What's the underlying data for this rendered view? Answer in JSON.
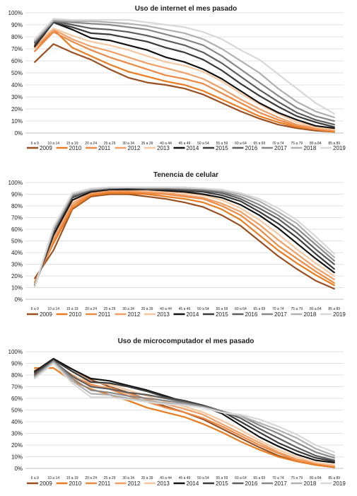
{
  "colors": {
    "2009": "#9a4f22",
    "2010": "#e97c1f",
    "2011": "#ec8a45",
    "2012": "#f0a066",
    "2013": "#f6c8a2",
    "2014": "#111111",
    "2015": "#3a3a3a",
    "2016": "#5e5e5e",
    "2017": "#888888",
    "2018": "#b0b0b0",
    "2019": "#d8d8d8",
    "grid": "#d9d9d9",
    "text": "#222222"
  },
  "chart_data": [
    {
      "type": "line",
      "title": "Uso de internet el mes pasado",
      "categories": [
        "6 a 9",
        "10 a 14",
        "15 a 19",
        "20 a 24",
        "25 a 29",
        "30 a 34",
        "35 a 39",
        "40 a 44",
        "45 a 49",
        "50 a 54",
        "55 a 59",
        "60 a 64",
        "65 a 69",
        "70 a 74",
        "75 a 79",
        "80 a 84",
        "85 a 89"
      ],
      "ylim": [
        0,
        100
      ],
      "yticks": [
        "0%",
        "10%",
        "20%",
        "30%",
        "40%",
        "50%",
        "60%",
        "70%",
        "80%",
        "90%",
        "100%"
      ],
      "grid": true,
      "legend": "bottom",
      "series": [
        {
          "name": "2009",
          "values": [
            59,
            74,
            67,
            61,
            53,
            46,
            42,
            40,
            37,
            32,
            25,
            18,
            12,
            7,
            4,
            2,
            1
          ]
        },
        {
          "name": "2010",
          "values": [
            68,
            86,
            71,
            64,
            57,
            51,
            47,
            43,
            40,
            35,
            28,
            21,
            14,
            9,
            5,
            3,
            1
          ]
        },
        {
          "name": "2011",
          "values": [
            68,
            84,
            76,
            69,
            63,
            58,
            53,
            48,
            45,
            41,
            33,
            25,
            17,
            11,
            6,
            3,
            2
          ]
        },
        {
          "name": "2012",
          "values": [
            71,
            86,
            78,
            72,
            68,
            63,
            58,
            54,
            50,
            45,
            37,
            28,
            20,
            13,
            7,
            4,
            2
          ]
        },
        {
          "name": "2013",
          "values": [
            74,
            87,
            81,
            76,
            73,
            69,
            64,
            59,
            56,
            51,
            43,
            33,
            24,
            16,
            9,
            5,
            3
          ]
        },
        {
          "name": "2014",
          "values": [
            72,
            92,
            86,
            79,
            77,
            73,
            69,
            63,
            59,
            53,
            45,
            35,
            25,
            17,
            11,
            6,
            4
          ]
        },
        {
          "name": "2015",
          "values": [
            73,
            92,
            88,
            83,
            82,
            79,
            76,
            71,
            67,
            61,
            52,
            41,
            31,
            22,
            14,
            9,
            5
          ]
        },
        {
          "name": "2016",
          "values": [
            75,
            93,
            90,
            87,
            86,
            84,
            81,
            77,
            73,
            67,
            58,
            47,
            36,
            26,
            17,
            11,
            7
          ]
        },
        {
          "name": "2017",
          "values": [
            76,
            93,
            92,
            91,
            90,
            88,
            86,
            82,
            78,
            73,
            64,
            53,
            42,
            31,
            21,
            14,
            10
          ]
        },
        {
          "name": "2018",
          "values": [
            77,
            94,
            93,
            93,
            92,
            91,
            89,
            86,
            83,
            78,
            70,
            60,
            50,
            37,
            26,
            18,
            13
          ]
        },
        {
          "name": "2019",
          "values": [
            78,
            95,
            94,
            94,
            94,
            94,
            92,
            90,
            88,
            84,
            78,
            69,
            61,
            49,
            37,
            25,
            16
          ]
        }
      ]
    },
    {
      "type": "line",
      "title": "Tenencia de celular",
      "categories": [
        "6 a 9",
        "10 a 14",
        "15 a 19",
        "20 a 24",
        "25 a 29",
        "30 a 34",
        "35 a 39",
        "40 a 44",
        "45 a 49",
        "50 a 54",
        "55 a 59",
        "60 a 64",
        "65 a 69",
        "70 a 74",
        "75 a 79",
        "80 a 84",
        "85 a 89"
      ],
      "ylim": [
        0,
        100
      ],
      "yticks": [
        "0%",
        "10%",
        "20%",
        "30%",
        "40%",
        "50%",
        "60%",
        "70%",
        "80%",
        "90%",
        "100%"
      ],
      "grid": true,
      "legend": "bottom",
      "series": [
        {
          "name": "2009",
          "values": [
            18,
            42,
            77,
            88,
            90,
            90,
            88,
            86,
            83,
            79,
            72,
            63,
            50,
            37,
            26,
            16,
            9
          ]
        },
        {
          "name": "2010",
          "values": [
            15,
            48,
            78,
            89,
            91,
            91,
            90,
            88,
            86,
            83,
            77,
            68,
            55,
            42,
            31,
            21,
            12
          ]
        },
        {
          "name": "2011",
          "values": [
            14,
            50,
            80,
            90,
            92,
            92,
            91,
            90,
            88,
            86,
            80,
            72,
            60,
            46,
            35,
            24,
            14
          ]
        },
        {
          "name": "2012",
          "values": [
            13,
            52,
            82,
            91,
            93,
            93,
            92,
            91,
            89,
            87,
            82,
            75,
            64,
            51,
            39,
            27,
            17
          ]
        },
        {
          "name": "2013",
          "values": [
            13,
            54,
            84,
            92,
            94,
            94,
            93,
            92,
            91,
            89,
            85,
            78,
            68,
            56,
            43,
            31,
            20
          ]
        },
        {
          "name": "2014",
          "values": [
            12,
            55,
            85,
            92,
            94,
            94,
            94,
            93,
            92,
            90,
            87,
            81,
            72,
            61,
            48,
            35,
            23
          ]
        },
        {
          "name": "2015",
          "values": [
            12,
            57,
            87,
            93,
            95,
            95,
            94,
            94,
            93,
            92,
            89,
            84,
            75,
            65,
            53,
            39,
            26
          ]
        },
        {
          "name": "2016",
          "values": [
            12,
            58,
            88,
            93,
            95,
            95,
            95,
            95,
            94,
            93,
            91,
            86,
            78,
            69,
            57,
            43,
            30
          ]
        },
        {
          "name": "2017",
          "values": [
            11,
            59,
            89,
            94,
            95,
            96,
            95,
            95,
            95,
            94,
            92,
            88,
            81,
            72,
            61,
            47,
            33
          ]
        },
        {
          "name": "2018",
          "values": [
            11,
            61,
            90,
            94,
            96,
            96,
            96,
            96,
            95,
            95,
            93,
            90,
            84,
            75,
            65,
            50,
            36
          ]
        },
        {
          "name": "2019",
          "values": [
            11,
            62,
            91,
            95,
            96,
            96,
            96,
            96,
            96,
            95,
            94,
            91,
            86,
            78,
            68,
            54,
            39
          ]
        }
      ]
    },
    {
      "type": "line",
      "title": "Uso de microcomputador el mes pasado",
      "categories": [
        "6 a 9",
        "10 a 14",
        "15 a 19",
        "20 a 24",
        "25 a 29",
        "30 a 34",
        "35 a 39",
        "40 a 44",
        "45 a 49",
        "50 a 54",
        "55 a 59",
        "60 a 64",
        "65 a 69",
        "70 a 74",
        "75 a 79",
        "80 a 84",
        "85 a 89"
      ],
      "ylim": [
        0,
        100
      ],
      "yticks": [
        "0%",
        "10%",
        "20%",
        "30%",
        "40%",
        "50%",
        "60%",
        "70%",
        "80%",
        "90%",
        "100%"
      ],
      "grid": true,
      "legend": "bottom",
      "series": [
        {
          "name": "2009",
          "values": [
            81,
            93,
            85,
            76,
            70,
            65,
            59,
            53,
            48,
            42,
            34,
            26,
            18,
            11,
            6,
            3,
            1
          ]
        },
        {
          "name": "2010",
          "values": [
            86,
            86,
            75,
            68,
            63,
            58,
            52,
            48,
            44,
            38,
            31,
            23,
            16,
            10,
            6,
            3,
            1
          ]
        },
        {
          "name": "2011",
          "values": [
            84,
            90,
            80,
            72,
            68,
            62,
            57,
            52,
            48,
            43,
            36,
            28,
            20,
            13,
            7,
            4,
            2
          ]
        },
        {
          "name": "2012",
          "values": [
            83,
            91,
            78,
            71,
            69,
            64,
            59,
            55,
            51,
            46,
            38,
            30,
            22,
            14,
            8,
            5,
            2
          ]
        },
        {
          "name": "2013",
          "values": [
            82,
            91,
            79,
            74,
            72,
            67,
            62,
            57,
            53,
            48,
            41,
            33,
            24,
            16,
            10,
            5,
            3
          ]
        },
        {
          "name": "2014",
          "values": [
            83,
            94,
            85,
            77,
            75,
            71,
            67,
            62,
            57,
            53,
            47,
            37,
            27,
            19,
            12,
            7,
            5
          ]
        },
        {
          "name": "2015",
          "values": [
            82,
            93,
            83,
            74,
            73,
            70,
            66,
            61,
            58,
            54,
            49,
            40,
            31,
            22,
            15,
            9,
            6
          ]
        },
        {
          "name": "2016",
          "values": [
            80,
            92,
            79,
            70,
            68,
            65,
            63,
            60,
            57,
            53,
            49,
            43,
            34,
            26,
            18,
            11,
            7
          ]
        },
        {
          "name": "2017",
          "values": [
            79,
            92,
            77,
            67,
            65,
            62,
            60,
            58,
            56,
            53,
            49,
            45,
            37,
            30,
            22,
            14,
            9
          ]
        },
        {
          "name": "2018",
          "values": [
            78,
            91,
            75,
            64,
            63,
            60,
            58,
            56,
            55,
            52,
            48,
            45,
            39,
            33,
            26,
            17,
            11
          ]
        },
        {
          "name": "2019",
          "values": [
            77,
            90,
            73,
            61,
            61,
            59,
            57,
            55,
            54,
            52,
            48,
            46,
            42,
            36,
            29,
            20,
            14
          ]
        }
      ]
    }
  ]
}
